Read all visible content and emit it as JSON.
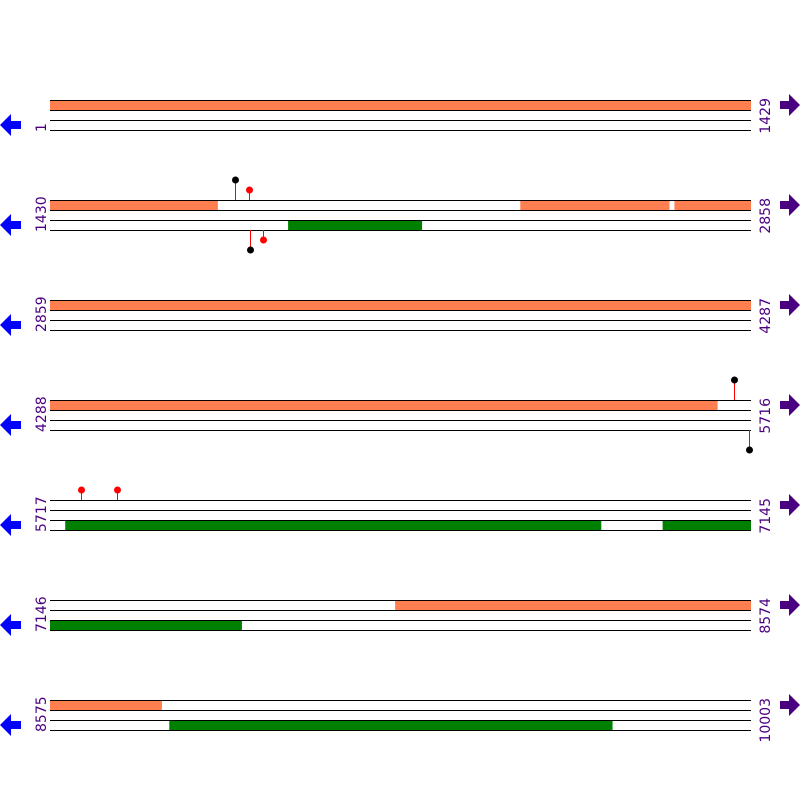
{
  "colors": {
    "top_feature": "#ff7f50",
    "bottom_feature": "#008000",
    "stem": "#ff0000",
    "line": "#000000",
    "label": "#4b0082",
    "left_arrow": "#0000ff",
    "right_arrow": "#4b0082"
  },
  "icons": {
    "left": "arrow-left-icon",
    "right": "arrow-right-icon"
  },
  "rows": [
    {
      "start": "1",
      "end": "1429",
      "s": 1,
      "e": 1429,
      "top": [
        [
          1,
          1429
        ]
      ],
      "bottom": [],
      "markers": []
    },
    {
      "start": "1430",
      "end": "2858",
      "s": 1430,
      "e": 2858,
      "top": [
        [
          1430,
          1772
        ],
        [
          2388,
          2692
        ],
        [
          2702,
          2858
        ]
      ],
      "bottom": [
        [
          1915,
          2188
        ]
      ],
      "markers": [
        {
          "pos": 1807,
          "strand": "top",
          "color": "#000000"
        },
        {
          "pos": 1836,
          "strand": "top",
          "color": "#ff0000"
        },
        {
          "pos": 1838,
          "strand": "bottom",
          "color": "#000000"
        },
        {
          "pos": 1864,
          "strand": "bottom",
          "color": "#ff0000"
        }
      ]
    },
    {
      "start": "2859",
      "end": "4287",
      "s": 2859,
      "e": 4287,
      "top": [
        [
          2859,
          4287
        ]
      ],
      "bottom": [],
      "markers": []
    },
    {
      "start": "4288",
      "end": "5716",
      "s": 4288,
      "e": 5716,
      "top": [
        [
          4288,
          5648
        ]
      ],
      "bottom": [],
      "markers": [
        {
          "pos": 5682,
          "strand": "top",
          "color": "#000000"
        },
        {
          "pos": 5711,
          "strand": "bottom",
          "color": "#000000"
        }
      ]
    },
    {
      "start": "5717",
      "end": "7145",
      "s": 5717,
      "e": 7145,
      "top": [],
      "bottom": [
        [
          5748,
          6840
        ],
        [
          6965,
          7145
        ]
      ],
      "markers": [
        {
          "pos": 5780,
          "strand": "top",
          "color": "#ff0000"
        },
        {
          "pos": 5854,
          "strand": "top",
          "color": "#ff0000"
        }
      ]
    },
    {
      "start": "7146",
      "end": "8574",
      "s": 7146,
      "e": 8574,
      "top": [
        [
          7849,
          8574
        ]
      ],
      "bottom": [
        [
          7146,
          7537
        ]
      ],
      "markers": []
    },
    {
      "start": "8575",
      "end": "10003",
      "s": 8575,
      "e": 10003,
      "top": [
        [
          8575,
          8803
        ]
      ],
      "bottom": [
        [
          8818,
          9721
        ]
      ],
      "markers": []
    }
  ]
}
